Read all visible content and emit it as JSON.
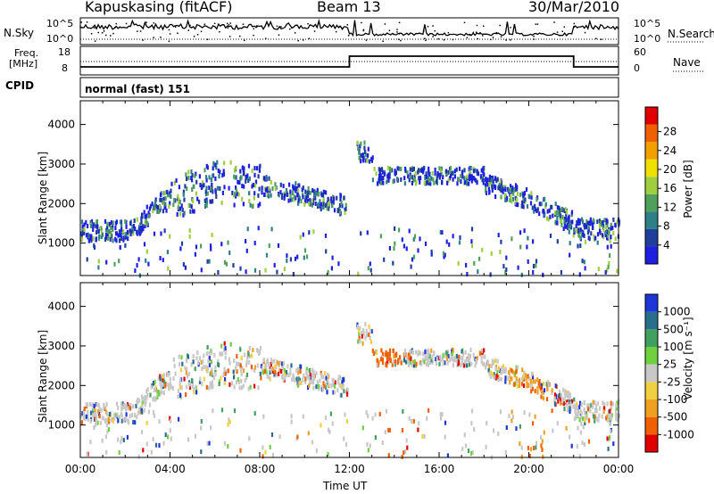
{
  "header": {
    "station": "Kapuskasing (fitACF)",
    "beam": "Beam 13",
    "date": "30/Mar/2010"
  },
  "top_panels": {
    "nsky_label": "N.Sky",
    "nsky_ticks": [
      "10^5",
      "10^0"
    ],
    "nsearch_label": "N.Search",
    "freq_label_1": "Freq.",
    "freq_label_2": "[MHz]",
    "freq_ticks": [
      "18",
      "8"
    ],
    "nave_label": "Nave",
    "nave_ticks": [
      "60",
      "0"
    ],
    "cpid_label": "CPID",
    "cpid_value": "normal (fast) 151"
  },
  "colors": {
    "power_scale": [
      "#1f1fe0",
      "#1e3f9c",
      "#2f7f86",
      "#4fa05a",
      "#9fcf3f",
      "#f0e000",
      "#f2a000",
      "#f06000",
      "#e00000"
    ],
    "velocity_scale": [
      "#1e36d8",
      "#2a6e8e",
      "#40a060",
      "#6fd040",
      "#c8c8c8",
      "#f0d040",
      "#f0a020",
      "#f06000",
      "#e00000"
    ]
  },
  "chart_data": [
    {
      "type": "heatmap",
      "name": "power",
      "xlabel": "",
      "ylabel": "Slant Range [km]",
      "x_ticks": [
        "00:00",
        "04:00",
        "08:00",
        "12:00",
        "16:00",
        "20:00",
        "00:00"
      ],
      "x_range_hours": [
        0,
        24
      ],
      "y_ticks": [
        "1000",
        "2000",
        "3000",
        "4000"
      ],
      "y_range_km": [
        180,
        4600
      ],
      "colorbar_label": "Power [dB]",
      "colorbar_ticks": [
        "4",
        "8",
        "12",
        "16",
        "20",
        "24",
        "28"
      ],
      "colorbar_range": [
        0,
        30
      ]
    },
    {
      "type": "heatmap",
      "name": "velocity",
      "xlabel": "Time UT",
      "ylabel": "Slant Range [km]",
      "x_ticks": [
        "00:00",
        "04:00",
        "08:00",
        "12:00",
        "16:00",
        "20:00",
        "00:00"
      ],
      "x_range_hours": [
        0,
        24
      ],
      "y_ticks": [
        "1000",
        "2000",
        "3000",
        "4000"
      ],
      "y_range_km": [
        180,
        4600
      ],
      "colorbar_label": "Velocity [m s⁻¹]",
      "colorbar_ticks": [
        "1000",
        "500",
        "100",
        "25",
        "-25",
        "-100",
        "-500",
        "-1000"
      ],
      "colorbar_range": [
        -1000,
        1000
      ]
    }
  ]
}
